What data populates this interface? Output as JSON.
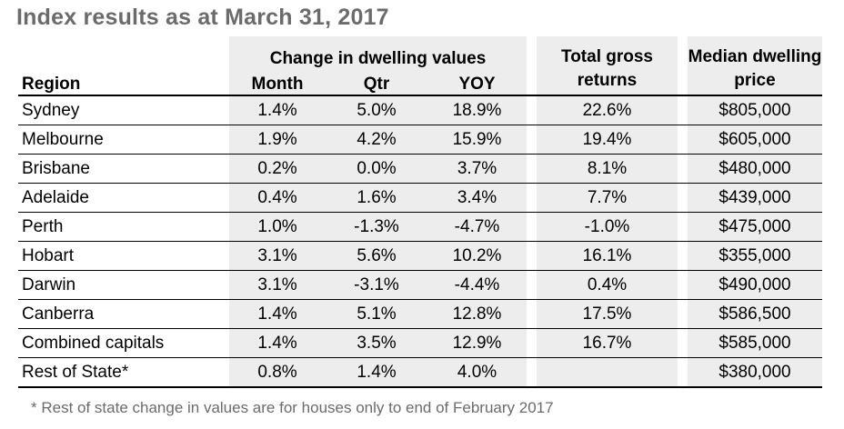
{
  "title": "Index results as at March 31, 2017",
  "table": {
    "group_header": "Change in dwelling values",
    "headers": {
      "region": "Region",
      "month": "Month",
      "qtr": "Qtr",
      "yoy": "YOY",
      "total_gross_returns": "Total gross returns",
      "median_dwelling_price": "Median dwelling price"
    },
    "rows": [
      {
        "region": "Sydney",
        "month": "1.4%",
        "qtr": "5.0%",
        "yoy": "18.9%",
        "tgr": "22.6%",
        "price": "$805,000"
      },
      {
        "region": "Melbourne",
        "month": "1.9%",
        "qtr": "4.2%",
        "yoy": "15.9%",
        "tgr": "19.4%",
        "price": "$605,000"
      },
      {
        "region": "Brisbane",
        "month": "0.2%",
        "qtr": "0.0%",
        "yoy": "3.7%",
        "tgr": "8.1%",
        "price": "$480,000"
      },
      {
        "region": "Adelaide",
        "month": "0.4%",
        "qtr": "1.6%",
        "yoy": "3.4%",
        "tgr": "7.7%",
        "price": "$439,000"
      },
      {
        "region": "Perth",
        "month": "1.0%",
        "qtr": "-1.3%",
        "yoy": "-4.7%",
        "tgr": "-1.0%",
        "price": "$475,000"
      },
      {
        "region": "Hobart",
        "month": "3.1%",
        "qtr": "5.6%",
        "yoy": "10.2%",
        "tgr": "16.1%",
        "price": "$355,000"
      },
      {
        "region": "Darwin",
        "month": "3.1%",
        "qtr": "-3.1%",
        "yoy": "-4.4%",
        "tgr": "0.4%",
        "price": "$490,000"
      },
      {
        "region": "Canberra",
        "month": "1.4%",
        "qtr": "5.1%",
        "yoy": "12.8%",
        "tgr": "17.5%",
        "price": "$586,500"
      },
      {
        "region": "Combined capitals",
        "month": "1.4%",
        "qtr": "3.5%",
        "yoy": "12.9%",
        "tgr": "16.7%",
        "price": "$585,000"
      },
      {
        "region": "Rest of State*",
        "month": "0.8%",
        "qtr": "1.4%",
        "yoy": "4.0%",
        "tgr": "",
        "price": "$380,000"
      }
    ]
  },
  "footnote": "* Rest of state change in values are for houses only to end of February 2017"
}
